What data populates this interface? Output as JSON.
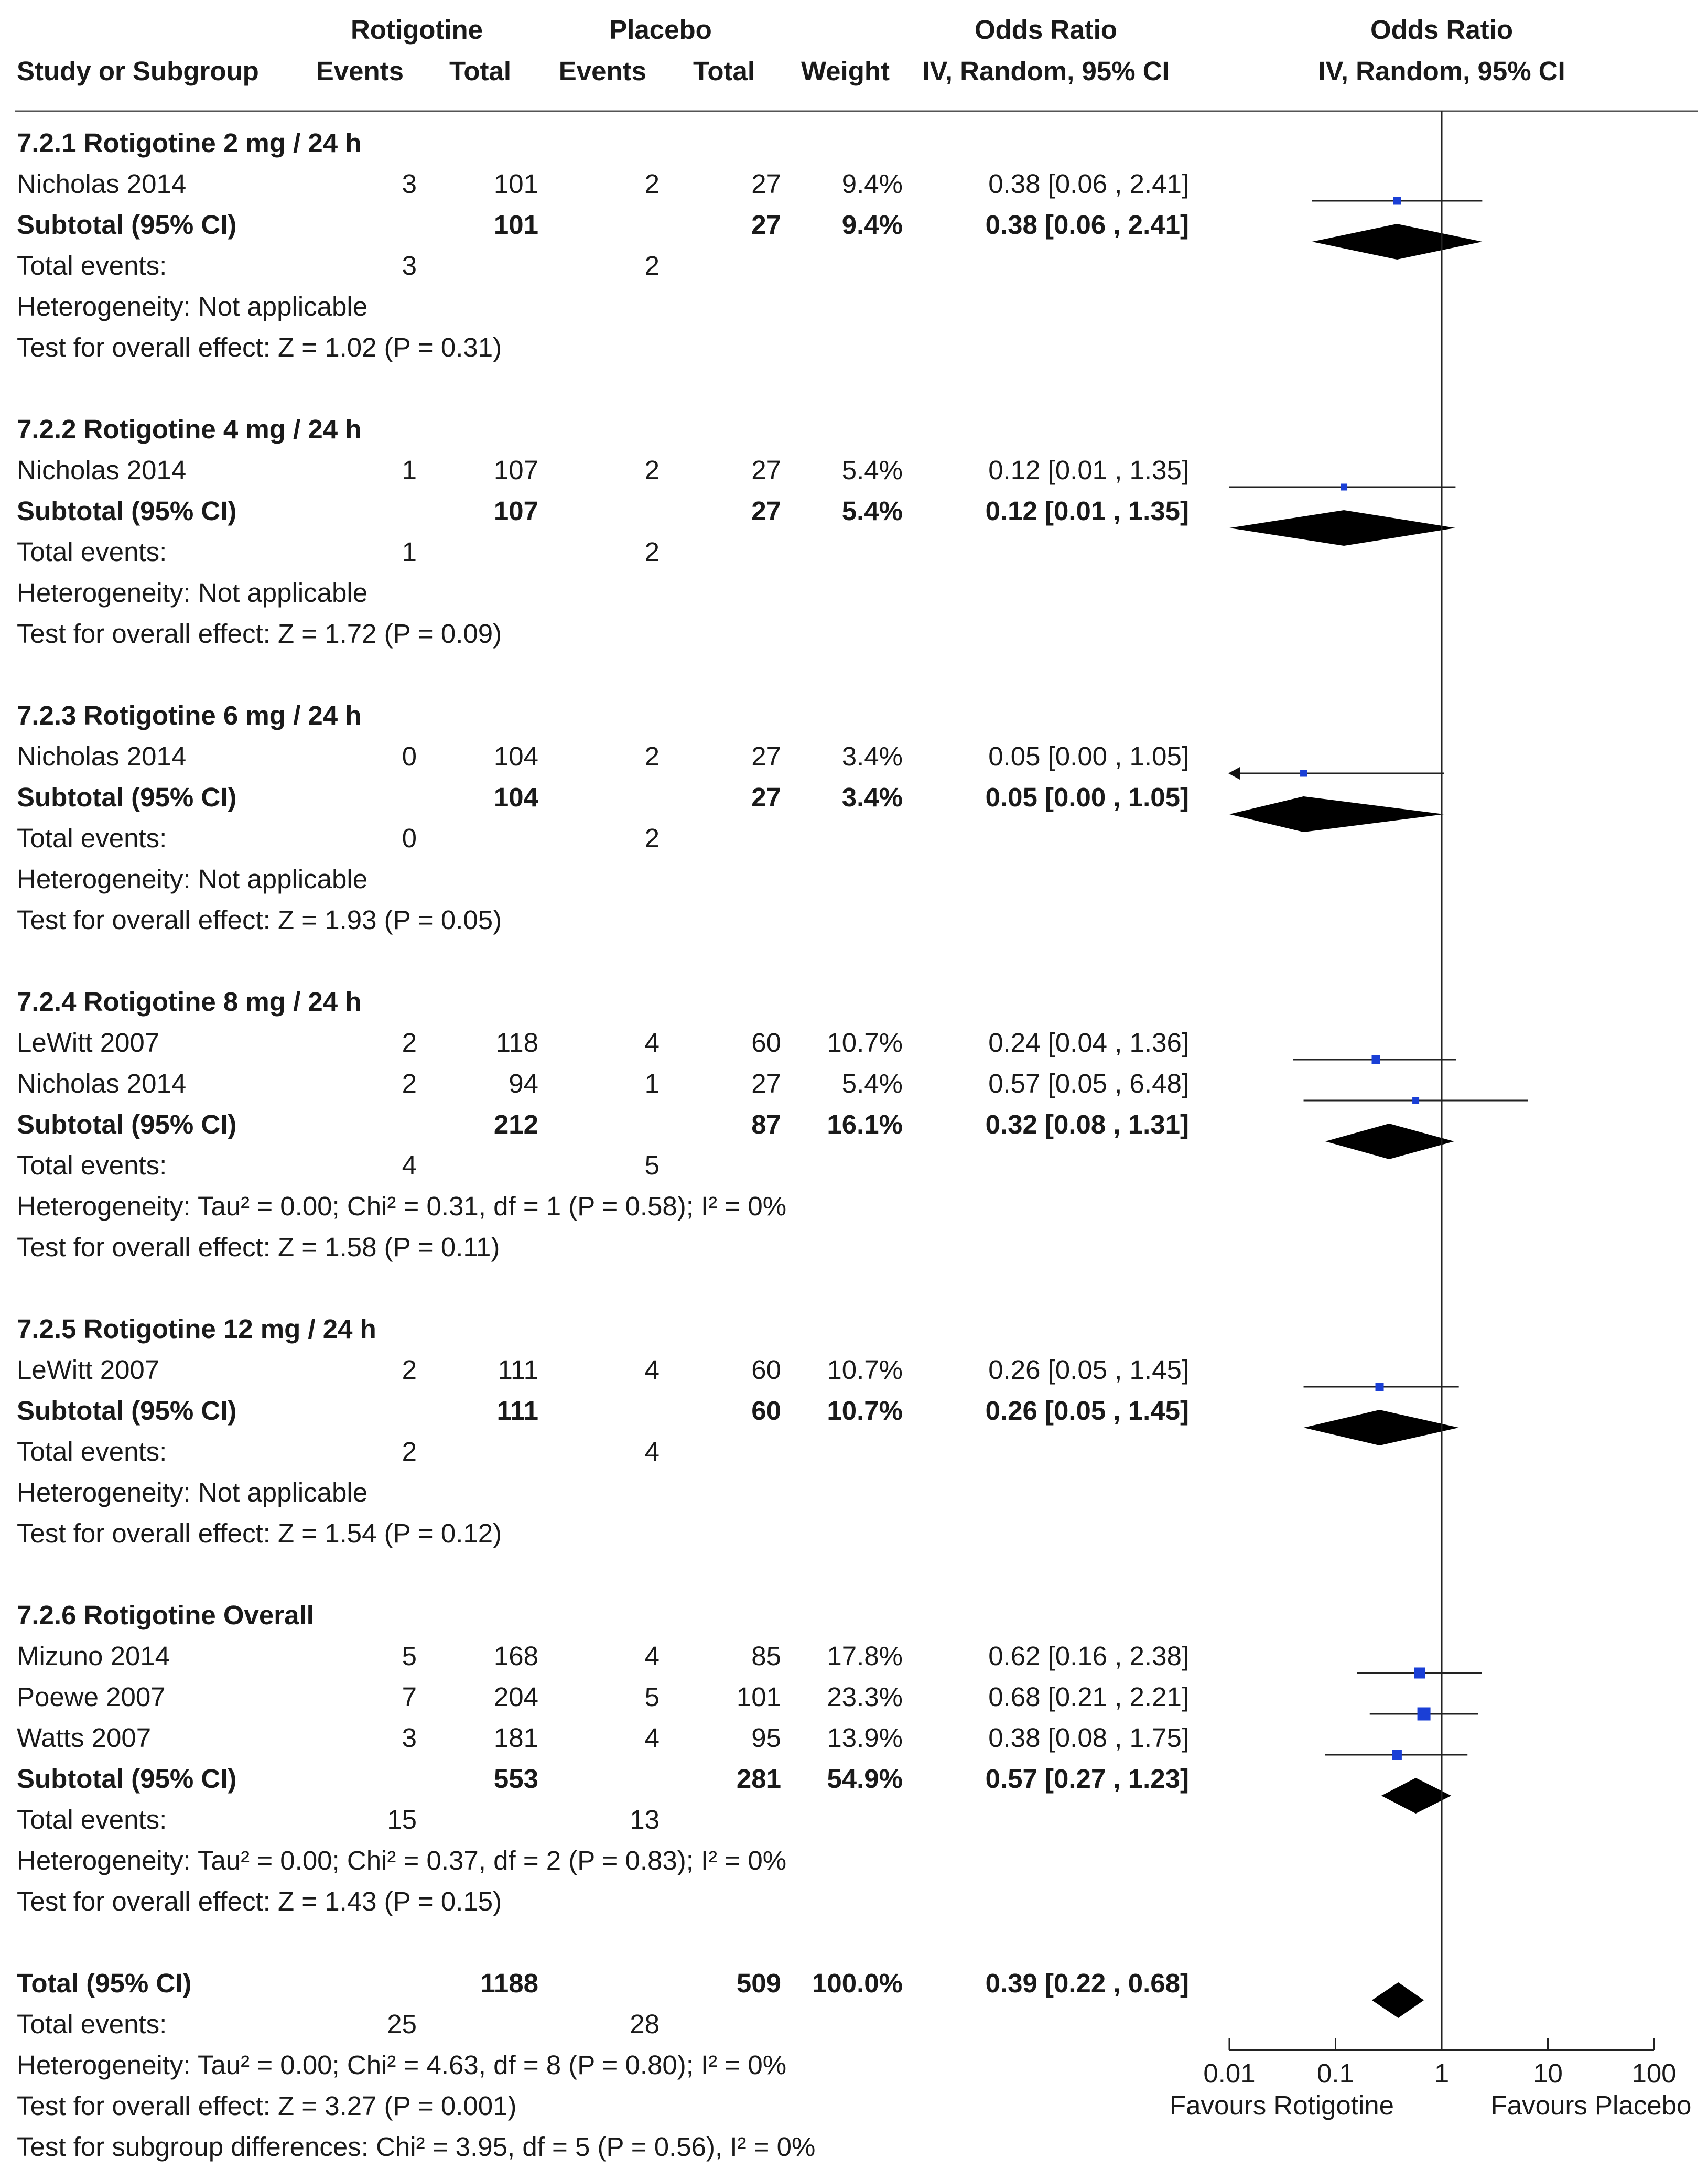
{
  "header": {
    "group1": "Rotigotine",
    "group2": "Placebo",
    "effect_title": "Odds Ratio",
    "plot_title": "Odds Ratio",
    "columns": {
      "study": "Study or Subgroup",
      "events1": "Events",
      "total1": "Total",
      "events2": "Events",
      "total2": "Total",
      "weight": "Weight",
      "effect": "IV, Random, 95% CI",
      "plot": "IV, Random, 95% CI"
    }
  },
  "axis": {
    "ticks": [
      "0.01",
      "0.1",
      "1",
      "10",
      "100"
    ],
    "left_label": "Favours Rotigotine",
    "right_label": "Favours Placebo"
  },
  "colors": {
    "study_marker": "#1a3fd6",
    "diamond": "#000000"
  },
  "chart_data": {
    "type": "forest",
    "scale": "log",
    "xlim": [
      0.01,
      100
    ],
    "null_value": 1,
    "rows": [
      {
        "kind": "heading",
        "label": "7.2.1 Rotigotine 2 mg / 24 h"
      },
      {
        "kind": "study",
        "label": "Nicholas 2014",
        "e1": "3",
        "t1": "101",
        "e2": "2",
        "t2": "27",
        "w": "9.4%",
        "ci_text": "0.38 [0.06 , 2.41]",
        "or": 0.38,
        "lo": 0.06,
        "hi": 2.41
      },
      {
        "kind": "subtotal",
        "label": "Subtotal (95% CI)",
        "t1": "101",
        "t2": "27",
        "w": "9.4%",
        "ci_text": "0.38 [0.06 , 2.41]",
        "or": 0.38,
        "lo": 0.06,
        "hi": 2.41
      },
      {
        "kind": "events",
        "label": "Total events:",
        "e1": "3",
        "e2": "2"
      },
      {
        "kind": "note",
        "label": "Heterogeneity: Not applicable"
      },
      {
        "kind": "note",
        "label": "Test for overall effect: Z = 1.02 (P = 0.31)"
      },
      {
        "kind": "blank"
      },
      {
        "kind": "heading",
        "label": "7.2.2 Rotigotine 4 mg / 24 h"
      },
      {
        "kind": "study",
        "label": "Nicholas 2014",
        "e1": "1",
        "t1": "107",
        "e2": "2",
        "t2": "27",
        "w": "5.4%",
        "ci_text": "0.12 [0.01 , 1.35]",
        "or": 0.12,
        "lo": 0.01,
        "hi": 1.35
      },
      {
        "kind": "subtotal",
        "label": "Subtotal (95% CI)",
        "t1": "107",
        "t2": "27",
        "w": "5.4%",
        "ci_text": "0.12 [0.01 , 1.35]",
        "or": 0.12,
        "lo": 0.01,
        "hi": 1.35
      },
      {
        "kind": "events",
        "label": "Total events:",
        "e1": "1",
        "e2": "2"
      },
      {
        "kind": "note",
        "label": "Heterogeneity: Not applicable"
      },
      {
        "kind": "note",
        "label": "Test for overall effect: Z = 1.72 (P = 0.09)"
      },
      {
        "kind": "blank"
      },
      {
        "kind": "heading",
        "label": "7.2.3 Rotigotine 6 mg / 24 h"
      },
      {
        "kind": "study",
        "label": "Nicholas 2014",
        "e1": "0",
        "t1": "104",
        "e2": "2",
        "t2": "27",
        "w": "3.4%",
        "ci_text": "0.05 [0.00 , 1.05]",
        "or": 0.05,
        "lo": 0.0,
        "hi": 1.05
      },
      {
        "kind": "subtotal",
        "label": "Subtotal (95% CI)",
        "t1": "104",
        "t2": "27",
        "w": "3.4%",
        "ci_text": "0.05 [0.00 , 1.05]",
        "or": 0.05,
        "lo": 0.0,
        "hi": 1.05
      },
      {
        "kind": "events",
        "label": "Total events:",
        "e1": "0",
        "e2": "2"
      },
      {
        "kind": "note",
        "label": "Heterogeneity: Not applicable"
      },
      {
        "kind": "note",
        "label": "Test for overall effect: Z = 1.93 (P = 0.05)"
      },
      {
        "kind": "blank"
      },
      {
        "kind": "heading",
        "label": "7.2.4 Rotigotine 8 mg / 24 h"
      },
      {
        "kind": "study",
        "label": "LeWitt 2007",
        "e1": "2",
        "t1": "118",
        "e2": "4",
        "t2": "60",
        "w": "10.7%",
        "ci_text": "0.24 [0.04 , 1.36]",
        "or": 0.24,
        "lo": 0.04,
        "hi": 1.36
      },
      {
        "kind": "study",
        "label": "Nicholas 2014",
        "e1": "2",
        "t1": "94",
        "e2": "1",
        "t2": "27",
        "w": "5.4%",
        "ci_text": "0.57 [0.05 , 6.48]",
        "or": 0.57,
        "lo": 0.05,
        "hi": 6.48
      },
      {
        "kind": "subtotal",
        "label": "Subtotal (95% CI)",
        "t1": "212",
        "t2": "87",
        "w": "16.1%",
        "ci_text": "0.32 [0.08 , 1.31]",
        "or": 0.32,
        "lo": 0.08,
        "hi": 1.31
      },
      {
        "kind": "events",
        "label": "Total events:",
        "e1": "4",
        "e2": "5"
      },
      {
        "kind": "note",
        "label": "Heterogeneity: Tau² = 0.00; Chi² = 0.31, df = 1 (P = 0.58); I² = 0%"
      },
      {
        "kind": "note",
        "label": "Test for overall effect: Z = 1.58 (P = 0.11)"
      },
      {
        "kind": "blank"
      },
      {
        "kind": "heading",
        "label": "7.2.5 Rotigotine 12 mg / 24 h"
      },
      {
        "kind": "study",
        "label": "LeWitt 2007",
        "e1": "2",
        "t1": "111",
        "e2": "4",
        "t2": "60",
        "w": "10.7%",
        "ci_text": "0.26 [0.05 , 1.45]",
        "or": 0.26,
        "lo": 0.05,
        "hi": 1.45
      },
      {
        "kind": "subtotal",
        "label": "Subtotal (95% CI)",
        "t1": "111",
        "t2": "60",
        "w": "10.7%",
        "ci_text": "0.26 [0.05 , 1.45]",
        "or": 0.26,
        "lo": 0.05,
        "hi": 1.45
      },
      {
        "kind": "events",
        "label": "Total events:",
        "e1": "2",
        "e2": "4"
      },
      {
        "kind": "note",
        "label": "Heterogeneity: Not applicable"
      },
      {
        "kind": "note",
        "label": "Test for overall effect: Z = 1.54 (P = 0.12)"
      },
      {
        "kind": "blank"
      },
      {
        "kind": "heading",
        "label": "7.2.6 Rotigotine Overall"
      },
      {
        "kind": "study",
        "label": "Mizuno 2014",
        "e1": "5",
        "t1": "168",
        "e2": "4",
        "t2": "85",
        "w": "17.8%",
        "ci_text": "0.62 [0.16 , 2.38]",
        "or": 0.62,
        "lo": 0.16,
        "hi": 2.38
      },
      {
        "kind": "study",
        "label": "Poewe 2007",
        "e1": "7",
        "t1": "204",
        "e2": "5",
        "t2": "101",
        "w": "23.3%",
        "ci_text": "0.68 [0.21 , 2.21]",
        "or": 0.68,
        "lo": 0.21,
        "hi": 2.21
      },
      {
        "kind": "study",
        "label": "Watts 2007",
        "e1": "3",
        "t1": "181",
        "e2": "4",
        "t2": "95",
        "w": "13.9%",
        "ci_text": "0.38 [0.08 , 1.75]",
        "or": 0.38,
        "lo": 0.08,
        "hi": 1.75
      },
      {
        "kind": "subtotal",
        "label": "Subtotal (95% CI)",
        "t1": "553",
        "t2": "281",
        "w": "54.9%",
        "ci_text": "0.57 [0.27 , 1.23]",
        "or": 0.57,
        "lo": 0.27,
        "hi": 1.23
      },
      {
        "kind": "events",
        "label": "Total events:",
        "e1": "15",
        "e2": "13"
      },
      {
        "kind": "note",
        "label": "Heterogeneity: Tau² = 0.00; Chi² = 0.37, df = 2 (P = 0.83); I² = 0%"
      },
      {
        "kind": "note",
        "label": "Test for overall effect: Z = 1.43 (P = 0.15)"
      },
      {
        "kind": "blank"
      },
      {
        "kind": "subtotal",
        "label": "Total (95% CI)",
        "t1": "1188",
        "t2": "509",
        "w": "100.0%",
        "ci_text": "0.39 [0.22 , 0.68]",
        "or": 0.39,
        "lo": 0.22,
        "hi": 0.68
      },
      {
        "kind": "events",
        "label": "Total events:",
        "e1": "25",
        "e2": "28"
      },
      {
        "kind": "note",
        "label": "Heterogeneity: Tau² = 0.00; Chi² = 4.63, df = 8 (P = 0.80); I² = 0%"
      },
      {
        "kind": "note",
        "label": "Test for overall effect: Z = 3.27 (P = 0.001)"
      },
      {
        "kind": "note",
        "label": "Test for subgroup differences: Chi² = 3.95, df = 5 (P = 0.56), I² = 0%"
      }
    ]
  }
}
